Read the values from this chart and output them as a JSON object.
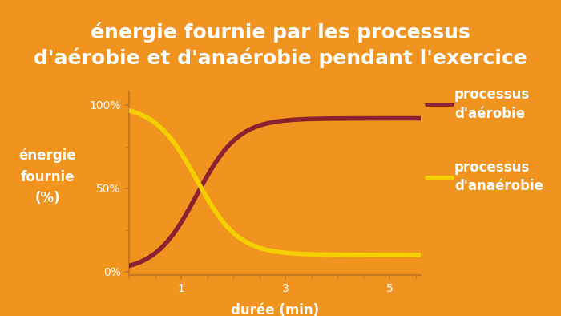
{
  "title": "énergie fournie par les processus\nd'aérobie et d'anaérobie pendant l'exercice",
  "xlabel": "durée (min)",
  "ylabel": "énergie\nfournie\n(%)",
  "bg_color": "#F0941F",
  "axes_bg_color": "#F0941F",
  "aerobic_color": "#8B2232",
  "anaerobic_color": "#F5D000",
  "spine_color": "#C87820",
  "text_color": "#FFFFFF",
  "legend_aerobic": "processus\nd'aérobie",
  "legend_anaerobic": "processus\nd'anaérobie",
  "xlim": [
    0,
    5.6
  ],
  "ylim": [
    -0.02,
    1.08
  ],
  "xticks": [
    1,
    3,
    5
  ],
  "ytick_vals": [
    0,
    0.5,
    1.0
  ],
  "ytick_labels": [
    "0%",
    "50%",
    "100%"
  ],
  "ytick_minor_vals": [
    0.25,
    0.75
  ],
  "line_width": 4.0,
  "title_fontsize": 18,
  "label_fontsize": 12,
  "tick_fontsize": 10,
  "legend_fontsize": 12
}
